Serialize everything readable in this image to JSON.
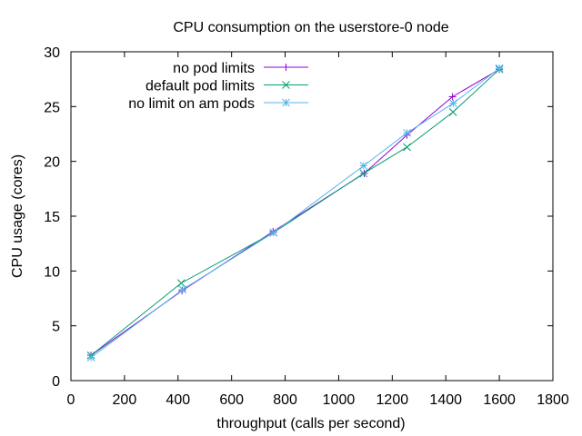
{
  "chart_data": {
    "type": "line",
    "title": "CPU consumption on the userstore-0 node",
    "xlabel": "throughput (calls per second)",
    "ylabel": "CPU usage (cores)",
    "xlim": [
      0,
      1800
    ],
    "ylim": [
      0,
      30
    ],
    "xticks": [
      0,
      200,
      400,
      600,
      800,
      1000,
      1200,
      1400,
      1600,
      1800
    ],
    "yticks": [
      0,
      5,
      10,
      15,
      20,
      25,
      30
    ],
    "grid": false,
    "legend_position": "top-left",
    "series": [
      {
        "name": "no pod limits",
        "color": "#9400d3",
        "marker": "plus",
        "x": [
          75,
          415,
          755,
          1095,
          1255,
          1425,
          1600
        ],
        "y": [
          2.3,
          8.2,
          13.6,
          18.9,
          22.4,
          25.9,
          28.4
        ]
      },
      {
        "name": "default pod limits",
        "color": "#009e73",
        "marker": "x",
        "x": [
          75,
          412,
          757,
          1093,
          1255,
          1427,
          1600
        ],
        "y": [
          2.3,
          8.9,
          13.5,
          18.9,
          21.3,
          24.5,
          28.4
        ]
      },
      {
        "name": "no limit on am pods",
        "color": "#56b4e9",
        "marker": "star",
        "x": [
          75,
          417,
          757,
          1093,
          1255,
          1428,
          1600
        ],
        "y": [
          2.1,
          8.3,
          13.5,
          19.6,
          22.6,
          25.3,
          28.5
        ]
      }
    ]
  }
}
